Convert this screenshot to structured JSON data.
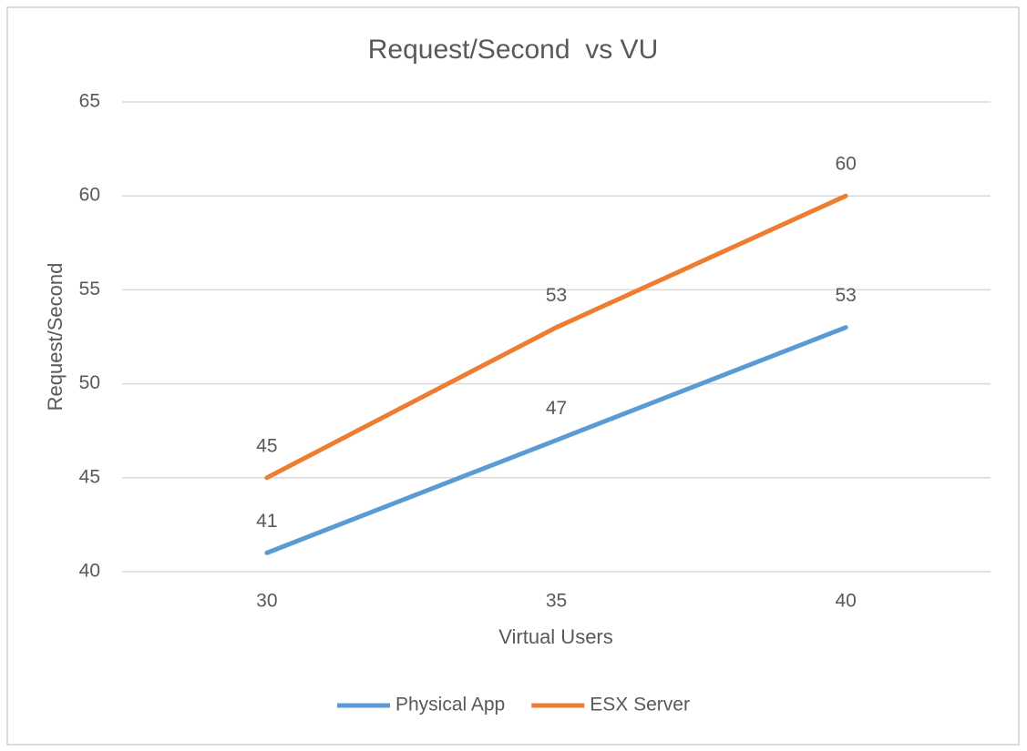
{
  "chart_data": {
    "type": "line",
    "title": "Request/Second  vs VU",
    "x_label": "Virtual Users",
    "y_label": "Request/Second",
    "categories": [
      "30",
      "35",
      "40"
    ],
    "series": [
      {
        "name": "Physical App",
        "color": "#5b9bd5",
        "values": [
          41,
          47,
          53
        ]
      },
      {
        "name": "ESX Server",
        "color": "#ed7d31",
        "values": [
          45,
          53,
          60
        ]
      }
    ],
    "ylim": [
      40,
      65
    ],
    "yticks": [
      40,
      45,
      50,
      55,
      60,
      65
    ],
    "grid": true,
    "legend": "bottom"
  }
}
